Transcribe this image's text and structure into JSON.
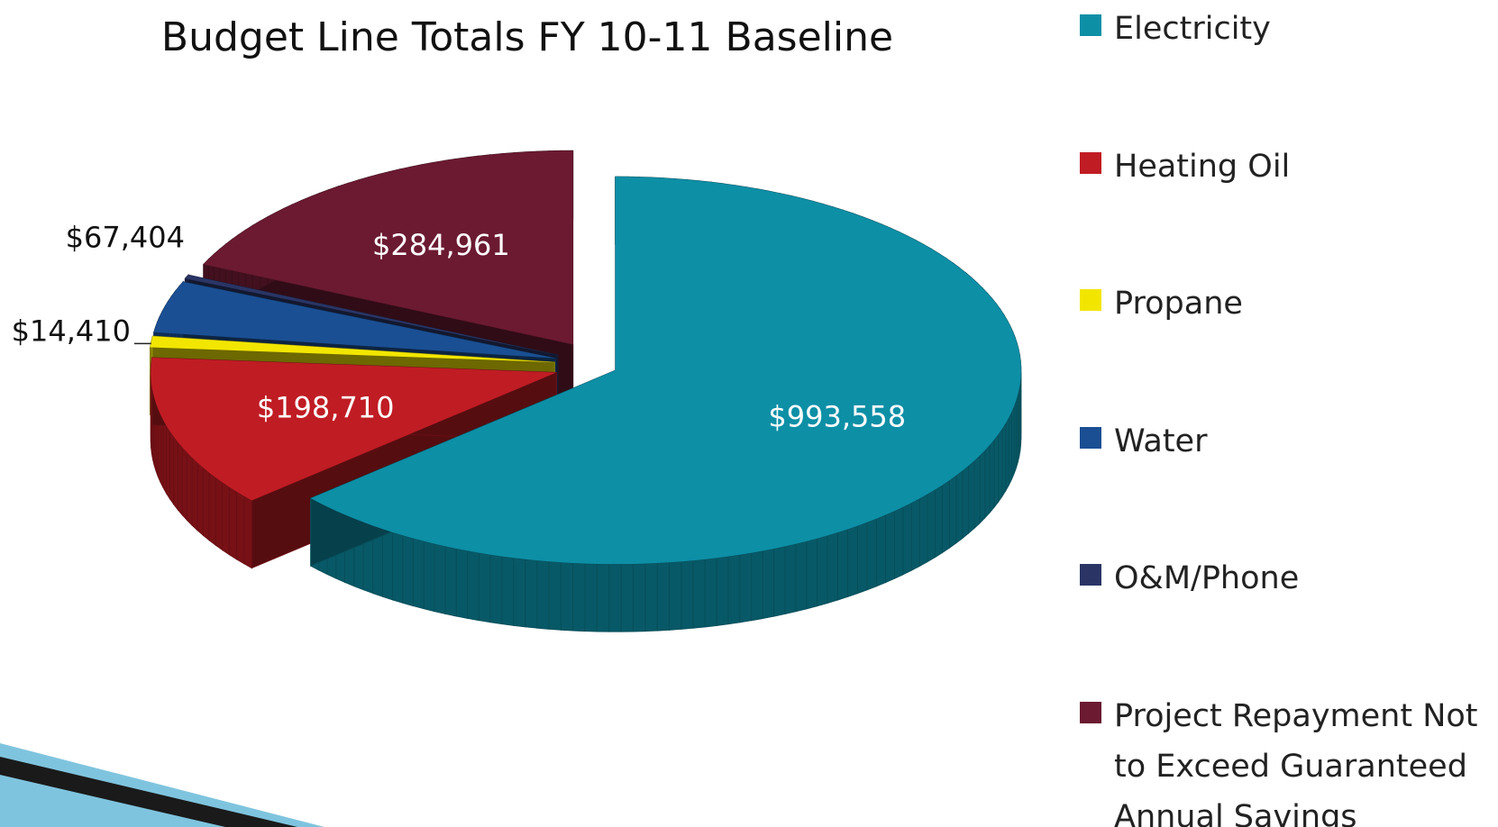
{
  "chart_data": {
    "type": "pie",
    "title": "Budget Line Totals FY 10-11 Baseline",
    "categories": [
      "Electricity",
      "Heating Oil",
      "Propane",
      "Water",
      "O&M/Phone",
      "Project Repayment Not to Exceed Guaranteed Annual Savings"
    ],
    "values": [
      993558,
      198710,
      14410,
      67404,
      5000,
      284961
    ],
    "value_labels": [
      "$993,558",
      "$198,710",
      "$14,410",
      "$67,404",
      null,
      "$284,961"
    ],
    "colors": [
      "#0d8fa6",
      "#c01c24",
      "#f2e600",
      "#1a4f93",
      "#2a3566",
      "#6b1a31"
    ],
    "legend": "right"
  }
}
